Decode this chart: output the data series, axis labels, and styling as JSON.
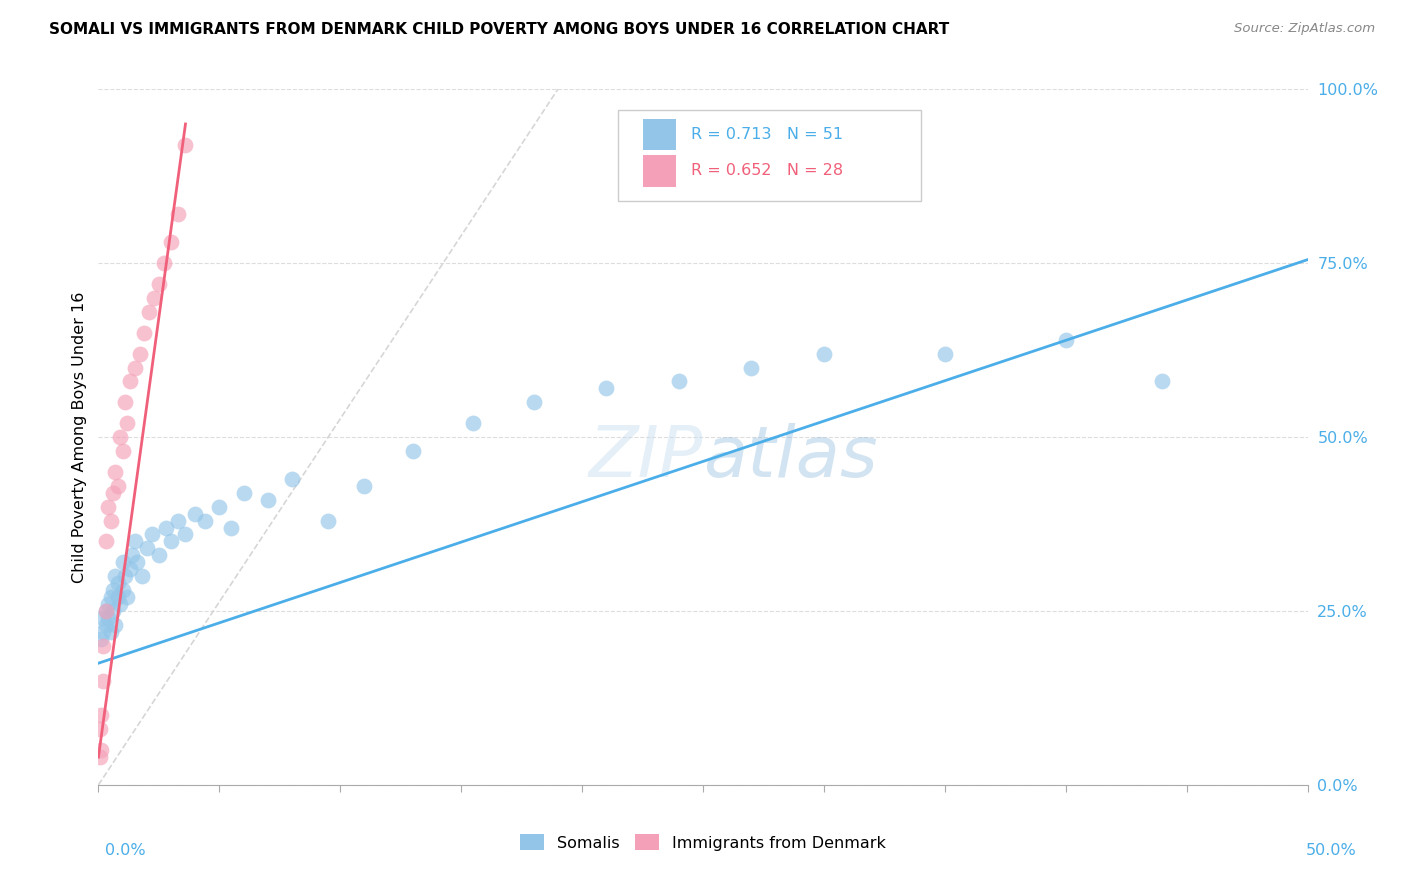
{
  "title": "SOMALI VS IMMIGRANTS FROM DENMARK CHILD POVERTY AMONG BOYS UNDER 16 CORRELATION CHART",
  "source": "Source: ZipAtlas.com",
  "ylabel": "Child Poverty Among Boys Under 16",
  "legend1_label": "Somalis",
  "legend2_label": "Immigrants from Denmark",
  "R1": 0.713,
  "N1": 51,
  "R2": 0.652,
  "N2": 28,
  "color_somali": "#92C5E8",
  "color_denmark": "#F4A0B8",
  "color_somali_line": "#4BAEE8",
  "color_denmark_line": "#F0607A",
  "color_diag": "#CCCCCC",
  "somali_x": [
    0.001,
    0.002,
    0.002,
    0.003,
    0.003,
    0.004,
    0.004,
    0.005,
    0.005,
    0.006,
    0.006,
    0.007,
    0.007,
    0.008,
    0.008,
    0.009,
    0.01,
    0.01,
    0.011,
    0.012,
    0.013,
    0.014,
    0.015,
    0.016,
    0.018,
    0.02,
    0.022,
    0.025,
    0.028,
    0.03,
    0.033,
    0.036,
    0.04,
    0.044,
    0.05,
    0.055,
    0.06,
    0.07,
    0.08,
    0.095,
    0.11,
    0.13,
    0.155,
    0.18,
    0.21,
    0.24,
    0.27,
    0.3,
    0.35,
    0.4,
    0.44
  ],
  "somali_y": [
    0.21,
    0.22,
    0.24,
    0.23,
    0.25,
    0.24,
    0.26,
    0.22,
    0.27,
    0.25,
    0.28,
    0.23,
    0.3,
    0.27,
    0.29,
    0.26,
    0.28,
    0.32,
    0.3,
    0.27,
    0.31,
    0.33,
    0.35,
    0.32,
    0.3,
    0.34,
    0.36,
    0.33,
    0.37,
    0.35,
    0.38,
    0.36,
    0.39,
    0.38,
    0.4,
    0.37,
    0.42,
    0.41,
    0.44,
    0.38,
    0.43,
    0.48,
    0.52,
    0.55,
    0.57,
    0.58,
    0.6,
    0.62,
    0.62,
    0.64,
    0.58
  ],
  "denmark_x": [
    0.0005,
    0.0008,
    0.001,
    0.001,
    0.002,
    0.002,
    0.003,
    0.003,
    0.004,
    0.005,
    0.006,
    0.007,
    0.008,
    0.009,
    0.01,
    0.011,
    0.012,
    0.013,
    0.015,
    0.017,
    0.019,
    0.021,
    0.023,
    0.025,
    0.027,
    0.03,
    0.033,
    0.036
  ],
  "denmark_y": [
    0.04,
    0.08,
    0.05,
    0.1,
    0.15,
    0.2,
    0.25,
    0.35,
    0.4,
    0.38,
    0.42,
    0.45,
    0.43,
    0.5,
    0.48,
    0.55,
    0.52,
    0.58,
    0.6,
    0.62,
    0.65,
    0.68,
    0.7,
    0.72,
    0.75,
    0.78,
    0.82,
    0.92
  ],
  "xlim": [
    0.0,
    0.5
  ],
  "ylim": [
    0.0,
    1.0
  ],
  "somali_line_x": [
    0.0,
    0.5
  ],
  "somali_line_y": [
    0.175,
    0.755
  ],
  "denmark_line_x": [
    0.0,
    0.036
  ],
  "denmark_line_y": [
    0.04,
    0.95
  ],
  "diag_line_x": [
    0.0,
    0.19
  ],
  "diag_line_y": [
    0.0,
    1.0
  ]
}
